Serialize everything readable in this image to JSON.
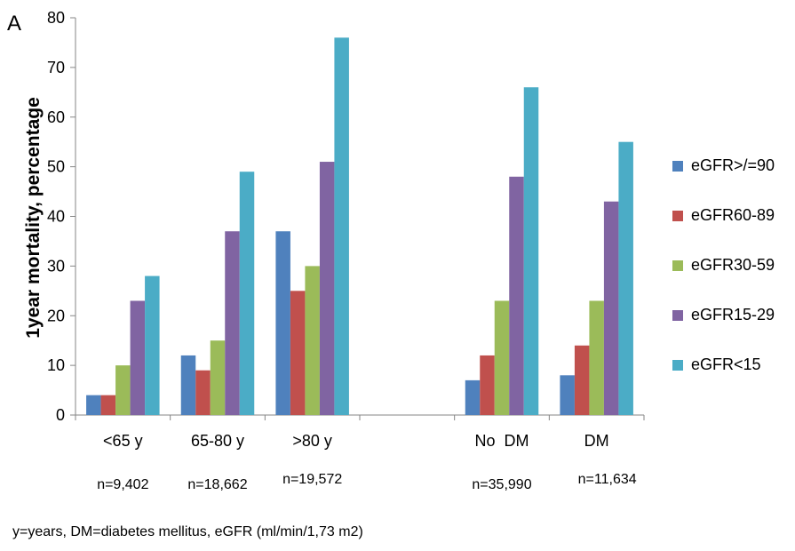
{
  "panel_label": "A",
  "footnote": "y=years, DM=diabetes mellitus, eGFR (ml/min/1,73 m2)",
  "chart_data": {
    "type": "bar",
    "title": "",
    "xlabel": "",
    "ylabel": "1year mortality, percentage",
    "ylim": [
      0,
      80
    ],
    "yticks": [
      0,
      10,
      20,
      30,
      40,
      50,
      60,
      70,
      80
    ],
    "grid": false,
    "legend_position": "right",
    "categories": [
      "<65 y",
      "65-80 y",
      ">80 y",
      "",
      "No  DM",
      "DM"
    ],
    "sample_sizes": [
      "n=9,402",
      "n=18,662",
      "n=19,572",
      "",
      "n=35,990",
      "n=11,634"
    ],
    "series": [
      {
        "name": "eGFR>/=90",
        "color": "#4f81bd",
        "values": [
          4,
          12,
          37,
          null,
          7,
          8
        ]
      },
      {
        "name": "eGFR60-89",
        "color": "#c0504d",
        "values": [
          4,
          9,
          25,
          null,
          12,
          14
        ]
      },
      {
        "name": "eGFR30-59",
        "color": "#9bbb59",
        "values": [
          10,
          15,
          30,
          null,
          23,
          23
        ]
      },
      {
        "name": "eGFR15-29",
        "color": "#8064a2",
        "values": [
          23,
          37,
          51,
          null,
          48,
          43
        ]
      },
      {
        "name": "eGFR<15",
        "color": "#4bacc6",
        "values": [
          28,
          49,
          76,
          null,
          66,
          55
        ]
      }
    ]
  }
}
